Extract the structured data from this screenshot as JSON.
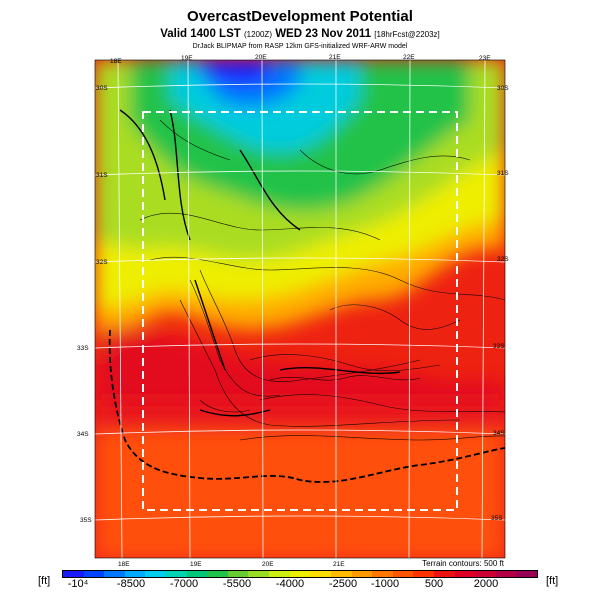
{
  "header": {
    "title": "OvercastDevelopment Potential",
    "valid_prefix": "Valid 1400 LST",
    "valid_utc": "(1200Z)",
    "valid_date": "WED 23 Nov 2011",
    "forecast_tag": "[18hrFcst@2203z]",
    "credit": "DrJack BLIPMAP from RASP 12km GFS-initialized WRF-ARW model"
  },
  "map": {
    "lon_labels": [
      "18E",
      "19E",
      "20E",
      "21E",
      "22E",
      "23E"
    ],
    "lon_labels_bottom": [
      "18E",
      "19E",
      "20E",
      "21E"
    ],
    "lat_labels_left": [
      "30S",
      "31S",
      "32S",
      "33S",
      "34S",
      "35S"
    ],
    "lat_labels_right": [
      "30S",
      "31S",
      "32S",
      "33S",
      "34S",
      "35S"
    ],
    "terrain_note": "Terrain contours: 500 ft"
  },
  "colorbar": {
    "unit_left": "[ft]",
    "unit_right": "[ft]",
    "tick_labels": [
      "-10⁴",
      "-8500",
      "-7000",
      "-5500",
      "-4000",
      "-2500",
      "-1000",
      "500",
      "2000"
    ],
    "colors": [
      "#1a1aff",
      "#0044ff",
      "#0077ff",
      "#00aaff",
      "#00ccee",
      "#00d2b4",
      "#00c878",
      "#22c24a",
      "#66cc33",
      "#99dd22",
      "#ccee11",
      "#eeee00",
      "#ffdd00",
      "#ffbb00",
      "#ff9900",
      "#ff7700",
      "#ff5500",
      "#ff3300",
      "#ee1111",
      "#dd0022",
      "#cc0033",
      "#b30044",
      "#990055"
    ]
  }
}
